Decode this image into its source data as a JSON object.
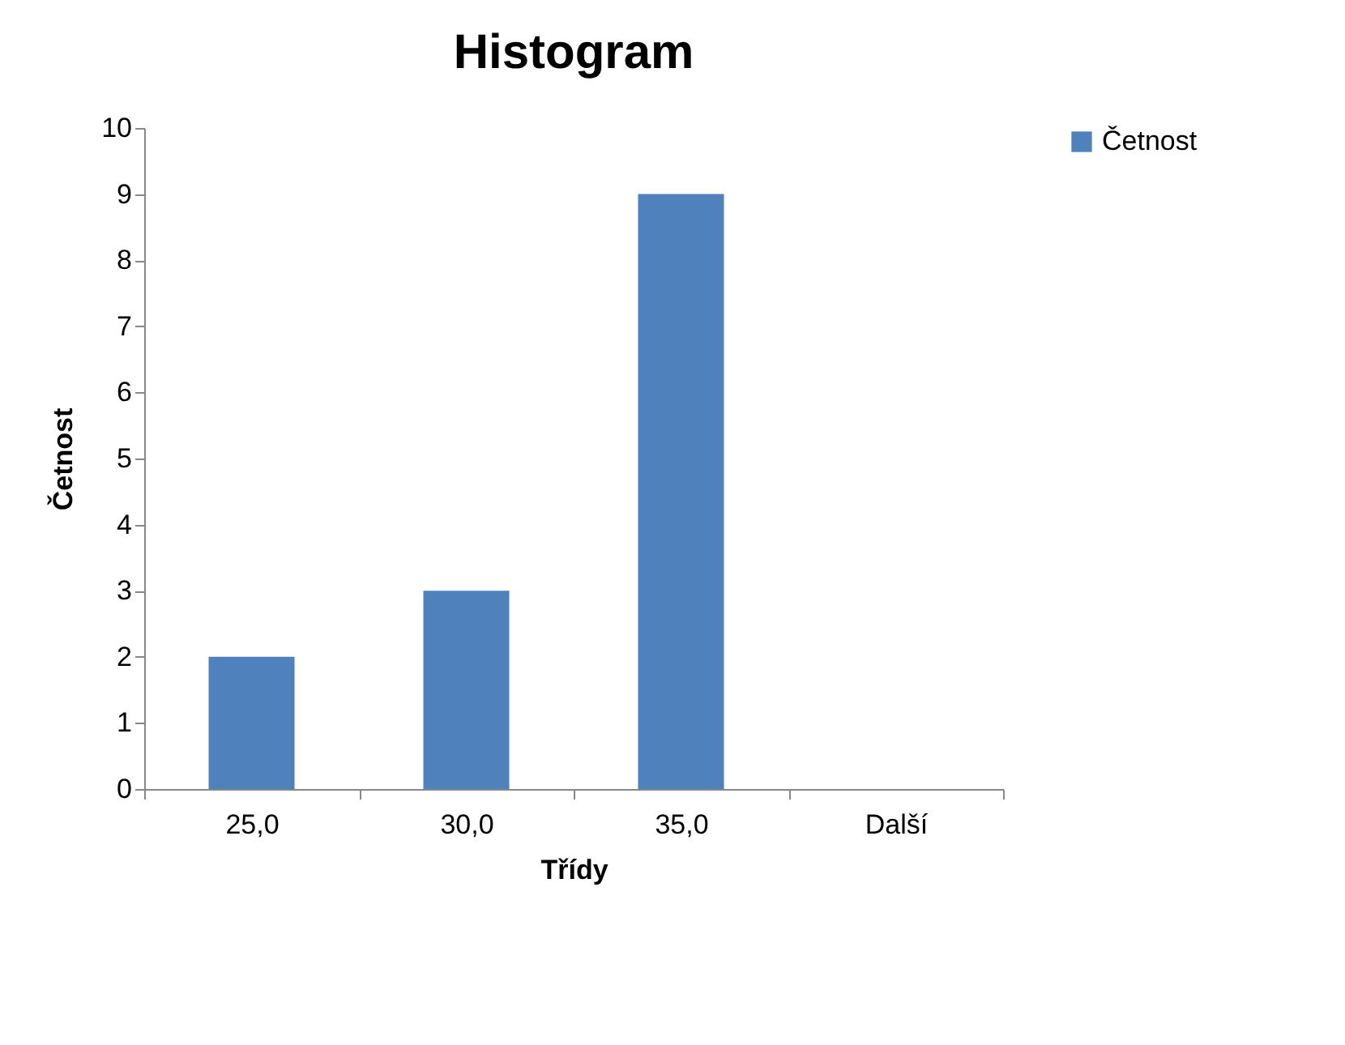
{
  "chart_data": {
    "type": "bar",
    "title": "Histogram",
    "xlabel": "Třídy",
    "ylabel": "Četnost",
    "categories": [
      "25,0",
      "30,0",
      "35,0",
      "Další"
    ],
    "series": [
      {
        "name": "Četnost",
        "color": "#4f81bd",
        "values": [
          2,
          3,
          9,
          0
        ]
      }
    ],
    "ylim": [
      0,
      10
    ],
    "yticks": [
      0,
      1,
      2,
      3,
      4,
      5,
      6,
      7,
      8,
      9,
      10
    ],
    "grid": false,
    "legend": "right"
  }
}
